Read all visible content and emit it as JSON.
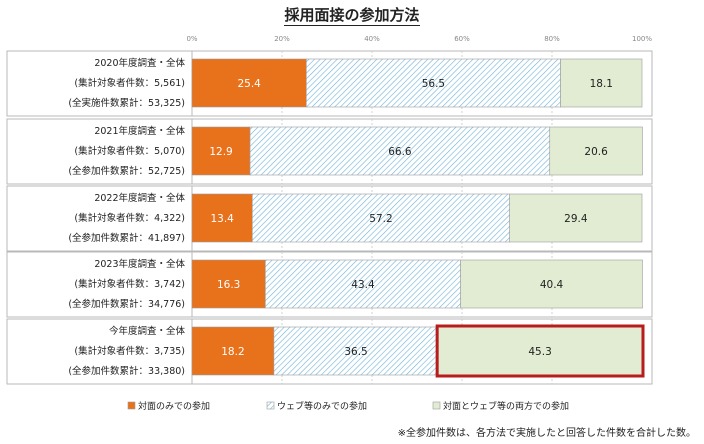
{
  "title": "採用面接の参加方法",
  "footnote": "※全参加件数は、各方法で実施したと回答した件数を合計した数。",
  "chart_data": {
    "type": "bar",
    "orientation": "horizontal",
    "stacked": true,
    "xlim": [
      0,
      100
    ],
    "x_ticks": [
      "0%",
      "20%",
      "40%",
      "60%",
      "80%",
      "100%"
    ],
    "categories": [
      [
        "2020年度調査・全体",
        "(集計対象者件数：5,561)",
        "(全実施件数累計：53,325)"
      ],
      [
        "2021年度調査・全体",
        "(集計対象者件数：5,070)",
        "(全参加件数累計：52,725)"
      ],
      [
        "2022年度調査・全体",
        "(集計対象者件数：4,322)",
        "(全参加件数累計：41,897)"
      ],
      [
        "2023年度調査・全体",
        "(集計対象者件数：3,742)",
        "(全参加件数累計：34,776)"
      ],
      [
        "今年度調査・全体",
        "(集計対象者件数：3,735)",
        "(全参加件数累計：33,380)"
      ]
    ],
    "series": [
      {
        "name": "対面のみでの参加",
        "color": "#e8711c",
        "pattern": "solid",
        "values": [
          25.4,
          12.9,
          13.4,
          16.3,
          18.2
        ]
      },
      {
        "name": "ウェブ等のみでの参加",
        "color": "#6fb3d8",
        "pattern": "hatch",
        "values": [
          56.5,
          66.6,
          57.2,
          43.4,
          36.5
        ]
      },
      {
        "name": "対面とウェブ等の両方での参加",
        "color": "#e2ecd2",
        "pattern": "solid",
        "values": [
          18.1,
          20.6,
          29.4,
          40.4,
          45.3
        ]
      }
    ],
    "highlight": {
      "category_index": 4,
      "series_index": 2,
      "color": "#b81c1c"
    },
    "grid": true,
    "legend_position": "bottom-left"
  }
}
